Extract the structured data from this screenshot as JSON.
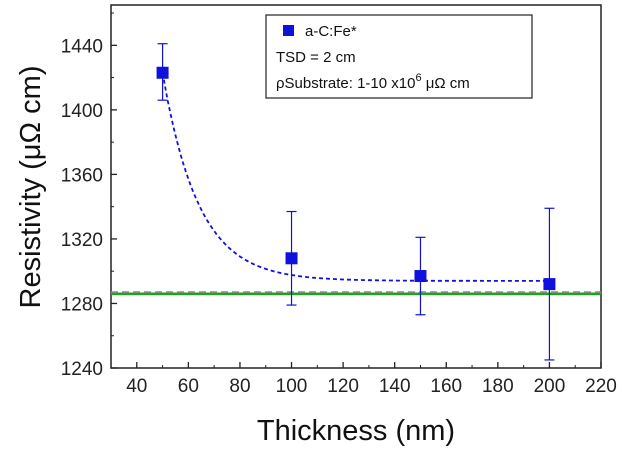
{
  "chart_data": {
    "type": "scatter",
    "xlabel": "Thickness (nm)",
    "ylabel": "Resistivity (μΩ cm)",
    "xlim": [
      30,
      220
    ],
    "ylim": [
      1240,
      1465
    ],
    "x_ticks": [
      40,
      60,
      80,
      100,
      120,
      140,
      160,
      180,
      200,
      220
    ],
    "y_ticks": [
      1240,
      1280,
      1320,
      1360,
      1400,
      1440
    ],
    "grid": false,
    "legend_position": "top-right",
    "series": [
      {
        "name": "a-C:Fe*",
        "color": "#1111dd",
        "marker": "square",
        "x": [
          50,
          100,
          150,
          200
        ],
        "y": [
          1423,
          1308,
          1297,
          1292
        ],
        "error": [
          [
            1406,
            1441
          ],
          [
            1279,
            1337
          ],
          [
            1273,
            1321
          ],
          [
            1245,
            1339
          ]
        ]
      }
    ],
    "fit_curve": {
      "style": "dashed",
      "color": "#1111dd",
      "asymptote": 1294,
      "start": [
        50,
        1423
      ],
      "decay": 14
    },
    "reference_lines": [
      {
        "y": 1286,
        "color": "#11aa11",
        "style": "solid"
      },
      {
        "y": 1287,
        "color": "#888888",
        "style": "dashed"
      }
    ],
    "legend_notes": [
      "TSD = 2 cm",
      {
        "base": "ρSubstrate: 1-10 x10",
        "superscript": "6",
        "tail": " μΩ cm"
      }
    ]
  }
}
